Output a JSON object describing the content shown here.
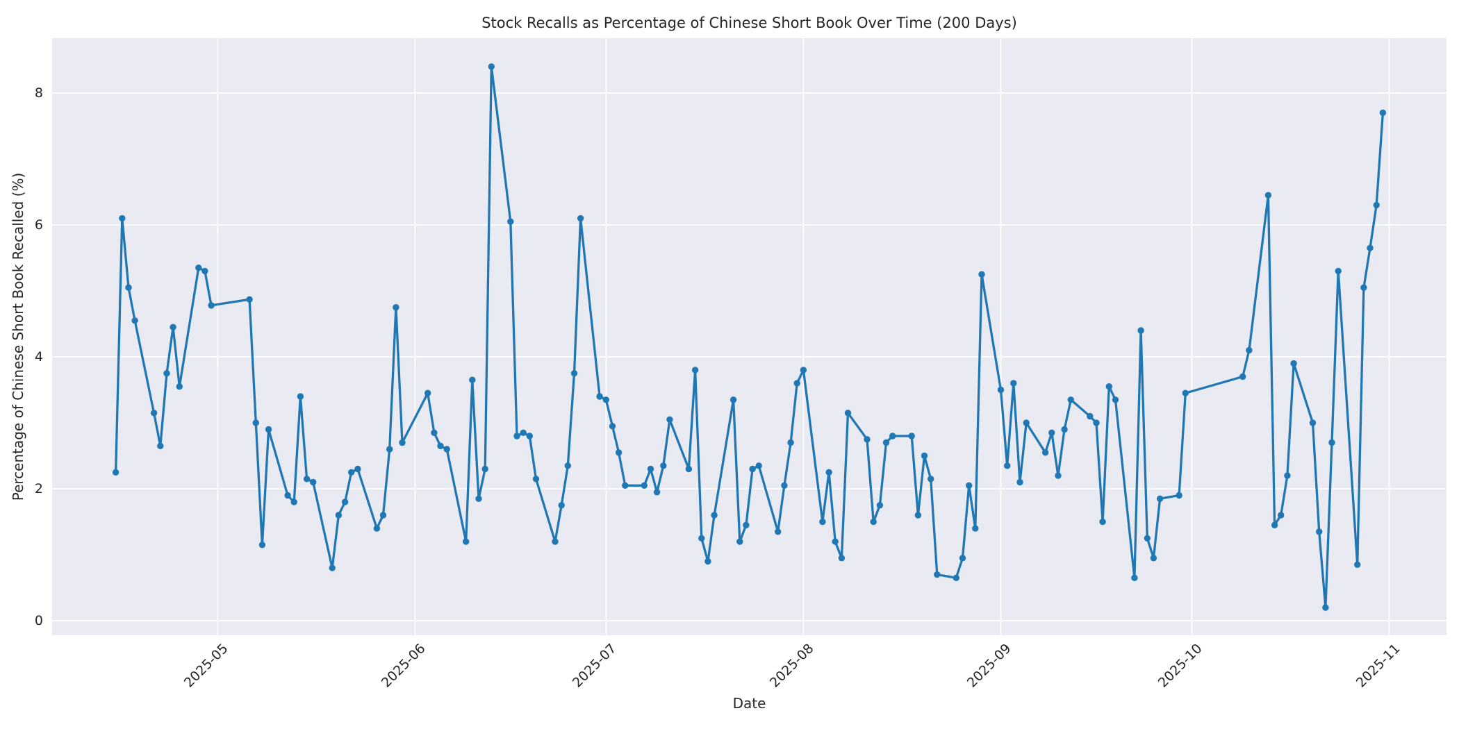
{
  "chart_data": {
    "type": "line",
    "title": "Stock Recalls as Percentage of Chinese Short Book Over Time (200 Days)",
    "xlabel": "Date",
    "ylabel": "Percentage of Chinese Short Book Recalled (%)",
    "legend": null,
    "grid": true,
    "line_color": "#1f77b4",
    "marker_color": "#1f77b4",
    "plot_bg_color": "#eaeaf2",
    "grid_color": "#ffffff",
    "text_color": "#262626",
    "marker_style": "circle",
    "yticks": [
      0,
      2,
      4,
      6,
      8
    ],
    "xticks": [
      "2025-05",
      "2025-06",
      "2025-07",
      "2025-08",
      "2025-09",
      "2025-10",
      "2025-11"
    ],
    "ylim": [
      -0.22,
      8.83
    ],
    "xlim": [
      "2025-04-05",
      "2025-11-10"
    ],
    "x": [
      "2025-04-15",
      "2025-04-16",
      "2025-04-17",
      "2025-04-18",
      "2025-04-21",
      "2025-04-22",
      "2025-04-23",
      "2025-04-24",
      "2025-04-25",
      "2025-04-28",
      "2025-04-29",
      "2025-04-30",
      "2025-05-06",
      "2025-05-07",
      "2025-05-08",
      "2025-05-09",
      "2025-05-12",
      "2025-05-13",
      "2025-05-14",
      "2025-05-15",
      "2025-05-16",
      "2025-05-19",
      "2025-05-20",
      "2025-05-21",
      "2025-05-22",
      "2025-05-23",
      "2025-05-26",
      "2025-05-27",
      "2025-05-28",
      "2025-05-29",
      "2025-05-30",
      "2025-06-03",
      "2025-06-04",
      "2025-06-05",
      "2025-06-06",
      "2025-06-09",
      "2025-06-10",
      "2025-06-11",
      "2025-06-12",
      "2025-06-13",
      "2025-06-16",
      "2025-06-17",
      "2025-06-18",
      "2025-06-19",
      "2025-06-20",
      "2025-06-23",
      "2025-06-24",
      "2025-06-25",
      "2025-06-26",
      "2025-06-27",
      "2025-06-30",
      "2025-07-01",
      "2025-07-02",
      "2025-07-03",
      "2025-07-04",
      "2025-07-07",
      "2025-07-08",
      "2025-07-09",
      "2025-07-10",
      "2025-07-11",
      "2025-07-14",
      "2025-07-15",
      "2025-07-16",
      "2025-07-17",
      "2025-07-18",
      "2025-07-21",
      "2025-07-22",
      "2025-07-23",
      "2025-07-24",
      "2025-07-25",
      "2025-07-28",
      "2025-07-29",
      "2025-07-30",
      "2025-07-31",
      "2025-08-01",
      "2025-08-04",
      "2025-08-05",
      "2025-08-06",
      "2025-08-07",
      "2025-08-08",
      "2025-08-11",
      "2025-08-12",
      "2025-08-13",
      "2025-08-14",
      "2025-08-15",
      "2025-08-18",
      "2025-08-19",
      "2025-08-20",
      "2025-08-21",
      "2025-08-22",
      "2025-08-25",
      "2025-08-26",
      "2025-08-27",
      "2025-08-28",
      "2025-08-29",
      "2025-09-01",
      "2025-09-02",
      "2025-09-03",
      "2025-09-04",
      "2025-09-05",
      "2025-09-08",
      "2025-09-09",
      "2025-09-10",
      "2025-09-11",
      "2025-09-12",
      "2025-09-15",
      "2025-09-16",
      "2025-09-17",
      "2025-09-18",
      "2025-09-19",
      "2025-09-22",
      "2025-09-23",
      "2025-09-24",
      "2025-09-25",
      "2025-09-26",
      "2025-09-29",
      "2025-09-30",
      "2025-10-09",
      "2025-10-10",
      "2025-10-13",
      "2025-10-14",
      "2025-10-15",
      "2025-10-16",
      "2025-10-17",
      "2025-10-20",
      "2025-10-21",
      "2025-10-22",
      "2025-10-23",
      "2025-10-24",
      "2025-10-27",
      "2025-10-28",
      "2025-10-29",
      "2025-10-30",
      "2025-10-31"
    ],
    "values": [
      2.25,
      6.1,
      5.05,
      4.55,
      3.15,
      2.65,
      3.75,
      4.45,
      3.55,
      5.35,
      5.3,
      4.78,
      4.87,
      3.0,
      1.15,
      2.9,
      1.9,
      1.8,
      3.4,
      2.15,
      2.1,
      0.8,
      1.6,
      1.8,
      2.25,
      2.3,
      1.4,
      1.6,
      2.6,
      4.75,
      2.7,
      3.45,
      2.85,
      2.65,
      2.6,
      1.2,
      3.65,
      1.85,
      2.3,
      8.4,
      6.05,
      2.8,
      2.85,
      2.8,
      2.15,
      1.2,
      1.75,
      2.35,
      3.75,
      6.1,
      3.4,
      3.35,
      2.95,
      2.55,
      2.05,
      2.05,
      2.3,
      1.95,
      2.35,
      3.05,
      2.3,
      3.8,
      1.25,
      0.9,
      1.6,
      3.35,
      1.2,
      1.45,
      2.3,
      2.35,
      1.35,
      2.05,
      2.7,
      3.6,
      3.8,
      1.5,
      2.25,
      1.2,
      0.95,
      3.15,
      2.75,
      1.5,
      1.75,
      2.7,
      2.8,
      2.8,
      1.6,
      2.5,
      2.15,
      0.7,
      0.65,
      0.95,
      2.05,
      1.4,
      5.25,
      3.5,
      2.35,
      3.6,
      2.1,
      3.0,
      2.55,
      2.85,
      2.2,
      2.9,
      3.35,
      3.1,
      3.0,
      1.5,
      3.55,
      3.35,
      0.65,
      4.4,
      1.25,
      0.95,
      1.85,
      1.9,
      3.45,
      3.7,
      4.1,
      6.45,
      1.45,
      1.6,
      2.2,
      3.9,
      3.0,
      1.35,
      0.2,
      2.7,
      5.3,
      0.85,
      5.05,
      5.65,
      6.3,
      7.7
    ]
  }
}
